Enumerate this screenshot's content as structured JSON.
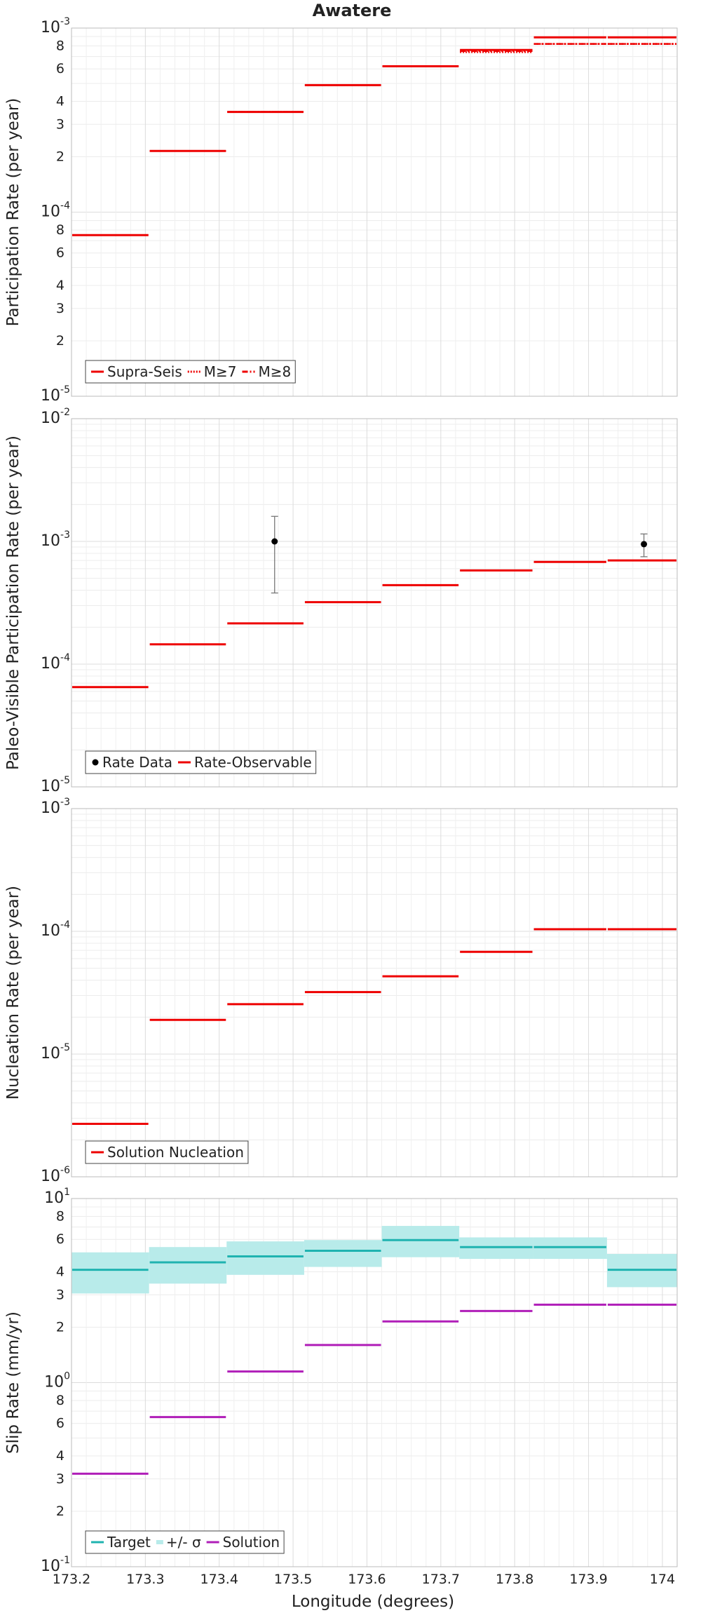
{
  "figure": {
    "title": "Awatere",
    "x_axis_label": "Longitude (degrees)",
    "x_tick_labels": [
      "173.2",
      "173.3",
      "173.4",
      "173.5",
      "173.6",
      "173.7",
      "173.8",
      "173.9",
      "174"
    ]
  },
  "chart_data": [
    {
      "type": "line",
      "style": "step",
      "title": "Awatere",
      "xlabel": "",
      "ylabel": "Participation Rate (per year)",
      "xlim": [
        173.2,
        174.02
      ],
      "ylim": [
        1e-05,
        0.001
      ],
      "yscale": "log",
      "grid": true,
      "legend_position": "bottom-left",
      "x_edges": [
        173.2,
        173.305,
        173.41,
        173.515,
        173.62,
        173.725,
        173.825,
        173.925,
        174.02
      ],
      "y_tick_labels": [
        {
          "v": 1e-05,
          "base": "10",
          "exp": "-5"
        },
        {
          "v": 2e-05,
          "base": "2"
        },
        {
          "v": 3e-05,
          "base": "3"
        },
        {
          "v": 4e-05,
          "base": "4"
        },
        {
          "v": 6e-05,
          "base": "6"
        },
        {
          "v": 8e-05,
          "base": "8"
        },
        {
          "v": 0.0001,
          "base": "10",
          "exp": "-4"
        },
        {
          "v": 0.0002,
          "base": "2"
        },
        {
          "v": 0.0003,
          "base": "3"
        },
        {
          "v": 0.0004,
          "base": "4"
        },
        {
          "v": 0.0006,
          "base": "6"
        },
        {
          "v": 0.0008,
          "base": "8"
        },
        {
          "v": 0.001,
          "base": "10",
          "exp": "-3"
        }
      ],
      "series": [
        {
          "name": "Supra-Seis",
          "color": "#ee0000",
          "style": "solid",
          "values": [
            7.5e-05,
            0.000215,
            0.00035,
            0.00049,
            0.00062,
            0.00076,
            0.00089,
            0.00089
          ]
        },
        {
          "name": "M≥7",
          "color": "#ee0000",
          "style": "dotted",
          "values": [
            7.5e-05,
            0.000215,
            0.00035,
            0.00049,
            0.00062,
            0.00074,
            0.00082,
            0.00082
          ]
        },
        {
          "name": "M≥8",
          "color": "#ee0000",
          "style": "dashdot",
          "values": [
            7.5e-05,
            0.000215,
            0.00035,
            0.00049,
            0.00062,
            0.00075,
            0.00082,
            0.00082
          ]
        }
      ]
    },
    {
      "type": "line",
      "style": "step",
      "xlabel": "",
      "ylabel": "Paleo-Visible Participation Rate (per year)",
      "xlim": [
        173.2,
        174.02
      ],
      "ylim": [
        1e-05,
        0.01
      ],
      "yscale": "log",
      "grid": true,
      "legend_position": "bottom-left",
      "x_edges": [
        173.2,
        173.305,
        173.41,
        173.515,
        173.62,
        173.725,
        173.825,
        173.925,
        174.02
      ],
      "y_tick_labels": [
        {
          "v": 1e-05,
          "base": "10",
          "exp": "-5"
        },
        {
          "v": 0.0001,
          "base": "10",
          "exp": "-4"
        },
        {
          "v": 0.001,
          "base": "10",
          "exp": "-3"
        },
        {
          "v": 0.01,
          "base": "10",
          "exp": "-2"
        }
      ],
      "series": [
        {
          "name": "Rate-Observable",
          "color": "#ee0000",
          "style": "solid",
          "values": [
            6.5e-05,
            0.000145,
            0.000215,
            0.00032,
            0.00044,
            0.00058,
            0.00068,
            0.0007
          ]
        }
      ],
      "points": {
        "name": "Rate Data",
        "color": "#000000",
        "data": [
          {
            "x": 173.475,
            "y": 0.001,
            "y_low": 0.00038,
            "y_high": 0.0016
          },
          {
            "x": 173.975,
            "y": 0.00095,
            "y_low": 0.00075,
            "y_high": 0.00115
          }
        ]
      }
    },
    {
      "type": "line",
      "style": "step",
      "xlabel": "",
      "ylabel": "Nucleation Rate (per year)",
      "xlim": [
        173.2,
        174.02
      ],
      "ylim": [
        1e-06,
        0.001
      ],
      "yscale": "log",
      "grid": true,
      "legend_position": "bottom-left",
      "x_edges": [
        173.2,
        173.305,
        173.41,
        173.515,
        173.62,
        173.725,
        173.825,
        173.925,
        174.02
      ],
      "y_tick_labels": [
        {
          "v": 1e-06,
          "base": "10",
          "exp": "-6"
        },
        {
          "v": 1e-05,
          "base": "10",
          "exp": "-5"
        },
        {
          "v": 0.0001,
          "base": "10",
          "exp": "-4"
        },
        {
          "v": 0.001,
          "base": "10",
          "exp": "-3"
        }
      ],
      "series": [
        {
          "name": "Solution Nucleation",
          "color": "#ee0000",
          "style": "solid",
          "values": [
            2.7e-06,
            1.9e-05,
            2.55e-05,
            3.2e-05,
            4.3e-05,
            6.8e-05,
            0.000104,
            0.000104
          ]
        }
      ]
    },
    {
      "type": "line",
      "style": "step",
      "xlabel": "Longitude (degrees)",
      "ylabel": "Slip Rate (mm/yr)",
      "xlim": [
        173.2,
        174.02
      ],
      "ylim": [
        0.1,
        10
      ],
      "yscale": "log",
      "grid": true,
      "legend_position": "bottom-left",
      "x_edges": [
        173.2,
        173.305,
        173.41,
        173.515,
        173.62,
        173.725,
        173.825,
        173.925,
        174.02
      ],
      "y_tick_labels": [
        {
          "v": 0.1,
          "base": "10",
          "exp": "-1"
        },
        {
          "v": 0.2,
          "base": "2"
        },
        {
          "v": 0.3,
          "base": "3"
        },
        {
          "v": 0.4,
          "base": "4"
        },
        {
          "v": 0.6,
          "base": "6"
        },
        {
          "v": 0.8,
          "base": "8"
        },
        {
          "v": 1,
          "base": "10",
          "exp": "0"
        },
        {
          "v": 2,
          "base": "2"
        },
        {
          "v": 3,
          "base": "3"
        },
        {
          "v": 4,
          "base": "4"
        },
        {
          "v": 6,
          "base": "6"
        },
        {
          "v": 8,
          "base": "8"
        },
        {
          "v": 10,
          "base": "10",
          "exp": "1"
        }
      ],
      "band": {
        "name": "+/- σ",
        "color": "#b8ebea",
        "low": [
          3.05,
          3.45,
          3.85,
          4.25,
          4.8,
          4.7,
          4.7,
          3.3
        ],
        "high": [
          5.1,
          5.45,
          5.85,
          5.95,
          7.1,
          6.15,
          6.15,
          5.0
        ]
      },
      "series": [
        {
          "name": "Target",
          "color": "#1fb3b0",
          "style": "solid",
          "values": [
            4.1,
            4.5,
            4.85,
            5.2,
            5.95,
            5.45,
            5.45,
            4.1
          ]
        },
        {
          "name": "Solution",
          "color": "#b01eb8",
          "style": "solid",
          "values": [
            0.32,
            0.65,
            1.15,
            1.6,
            2.15,
            2.45,
            2.65,
            2.65
          ]
        }
      ]
    }
  ]
}
